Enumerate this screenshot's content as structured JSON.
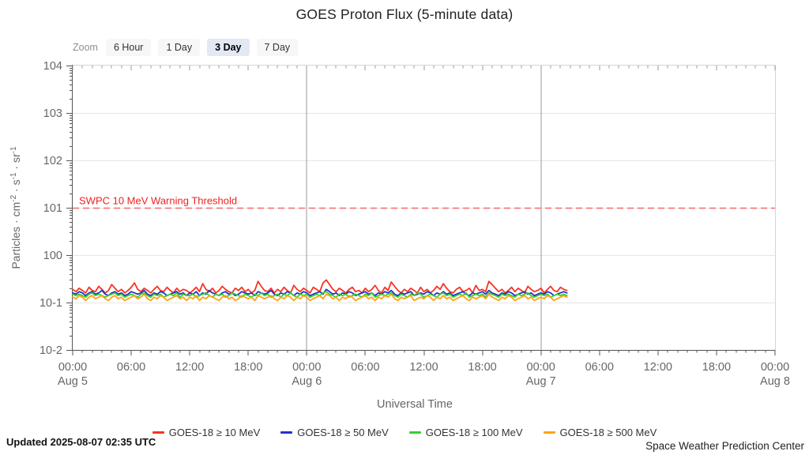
{
  "title": "GOES Proton Flux (5-minute data)",
  "toolbar": {
    "label": "Zoom",
    "buttons": [
      {
        "label": "6 Hour",
        "selected": false
      },
      {
        "label": "1 Day",
        "selected": false
      },
      {
        "label": "3 Day",
        "selected": true
      },
      {
        "label": "7 Day",
        "selected": false
      }
    ]
  },
  "footer": {
    "updated": "Updated 2025-08-07 02:35 UTC",
    "source": "Space Weather Prediction Center"
  },
  "colors": {
    "axis": "#555555",
    "frame": "#ccd6eb",
    "grid": "#e6e6e6",
    "day_separator": "#999999",
    "tick_label": "#666666",
    "threshold_line": "#f26a6a",
    "threshold_text": "#ee2222",
    "selected_button_bg": "#e3e8f5"
  },
  "chart_data": {
    "type": "line",
    "title": "GOES Proton Flux (5-minute data)",
    "xlabel": "Universal Time",
    "ylabel": "Particles · cm⁻² · s⁻¹ · sr⁻¹",
    "ylabel_parts": [
      [
        "t",
        "Particles · cm"
      ],
      [
        "s",
        "-2"
      ],
      [
        "t",
        " · s"
      ],
      [
        "s",
        "-1"
      ],
      [
        "t",
        " · sr"
      ],
      [
        "s",
        "-1"
      ]
    ],
    "y_scale": "log",
    "ylim": [
      0.01,
      10000
    ],
    "y_tick_labels": [
      "104",
      "103",
      "102",
      "101",
      "100",
      "10-1",
      "10-2"
    ],
    "x_range_hours": 72,
    "x_major_ticks": [
      {
        "time": "00:00",
        "date": "Aug 5"
      },
      {
        "time": "06:00"
      },
      {
        "time": "12:00"
      },
      {
        "time": "18:00"
      },
      {
        "time": "00:00",
        "date": "Aug 6"
      },
      {
        "time": "06:00"
      },
      {
        "time": "12:00"
      },
      {
        "time": "18:00"
      },
      {
        "time": "00:00",
        "date": "Aug 7"
      },
      {
        "time": "06:00"
      },
      {
        "time": "12:00"
      },
      {
        "time": "18:00"
      },
      {
        "time": "00:00",
        "date": "Aug 8"
      }
    ],
    "day_separators_hours": [
      24,
      48
    ],
    "threshold": {
      "label": "SWPC 10 MeV Warning Threshold",
      "value": 10
    },
    "legend_position": "bottom",
    "grid": "horizontal-decades",
    "sample_step_minutes": 20,
    "series": [
      {
        "name": "GOES-18 ≥ 10 MeV",
        "color": "#f8341f",
        "values": [
          0.19,
          0.17,
          0.2,
          0.18,
          0.16,
          0.21,
          0.18,
          0.17,
          0.22,
          0.19,
          0.16,
          0.18,
          0.24,
          0.2,
          0.17,
          0.19,
          0.16,
          0.18,
          0.21,
          0.26,
          0.19,
          0.17,
          0.2,
          0.18,
          0.16,
          0.19,
          0.22,
          0.18,
          0.17,
          0.21,
          0.18,
          0.16,
          0.2,
          0.17,
          0.19,
          0.18,
          0.16,
          0.18,
          0.21,
          0.17,
          0.25,
          0.19,
          0.17,
          0.2,
          0.16,
          0.18,
          0.22,
          0.19,
          0.17,
          0.16,
          0.2,
          0.18,
          0.21,
          0.17,
          0.19,
          0.16,
          0.18,
          0.28,
          0.22,
          0.18,
          0.17,
          0.2,
          0.16,
          0.19,
          0.17,
          0.21,
          0.18,
          0.16,
          0.23,
          0.19,
          0.17,
          0.2,
          0.18,
          0.16,
          0.21,
          0.19,
          0.17,
          0.26,
          0.3,
          0.24,
          0.19,
          0.17,
          0.2,
          0.18,
          0.16,
          0.19,
          0.21,
          0.17,
          0.18,
          0.16,
          0.2,
          0.17,
          0.19,
          0.23,
          0.18,
          0.16,
          0.21,
          0.18,
          0.27,
          0.22,
          0.18,
          0.16,
          0.19,
          0.17,
          0.2,
          0.18,
          0.16,
          0.21,
          0.17,
          0.19,
          0.16,
          0.18,
          0.22,
          0.19,
          0.25,
          0.2,
          0.17,
          0.16,
          0.19,
          0.21,
          0.17,
          0.18,
          0.2,
          0.16,
          0.23,
          0.18,
          0.19,
          0.17,
          0.28,
          0.24,
          0.2,
          0.17,
          0.19,
          0.16,
          0.18,
          0.21,
          0.17,
          0.2,
          0.18,
          0.16,
          0.22,
          0.19,
          0.17,
          0.18,
          0.2,
          0.16,
          0.19,
          0.22,
          0.18,
          0.17,
          0.21,
          0.19,
          0.18
        ]
      },
      {
        "name": "GOES-18 ≥ 50 MeV",
        "color": "#2330cf",
        "values": [
          0.16,
          0.15,
          0.17,
          0.16,
          0.14,
          0.16,
          0.17,
          0.15,
          0.16,
          0.18,
          0.15,
          0.14,
          0.16,
          0.17,
          0.15,
          0.16,
          0.14,
          0.15,
          0.17,
          0.16,
          0.15,
          0.16,
          0.18,
          0.15,
          0.14,
          0.16,
          0.15,
          0.17,
          0.16,
          0.14,
          0.15,
          0.16,
          0.17,
          0.15,
          0.16,
          0.14,
          0.16,
          0.15,
          0.17,
          0.14,
          0.16,
          0.15,
          0.18,
          0.16,
          0.15,
          0.14,
          0.16,
          0.17,
          0.15,
          0.16,
          0.14,
          0.15,
          0.17,
          0.16,
          0.15,
          0.16,
          0.14,
          0.17,
          0.16,
          0.15,
          0.16,
          0.18,
          0.15,
          0.14,
          0.16,
          0.15,
          0.17,
          0.16,
          0.14,
          0.16,
          0.15,
          0.17,
          0.16,
          0.14,
          0.15,
          0.16,
          0.17,
          0.15,
          0.19,
          0.17,
          0.15,
          0.16,
          0.14,
          0.16,
          0.15,
          0.17,
          0.16,
          0.14,
          0.15,
          0.16,
          0.17,
          0.15,
          0.16,
          0.14,
          0.16,
          0.15,
          0.17,
          0.16,
          0.18,
          0.15,
          0.14,
          0.16,
          0.15,
          0.16,
          0.17,
          0.14,
          0.15,
          0.16,
          0.15,
          0.17,
          0.16,
          0.14,
          0.16,
          0.15,
          0.17,
          0.15,
          0.16,
          0.14,
          0.15,
          0.16,
          0.17,
          0.15,
          0.14,
          0.16,
          0.15,
          0.16,
          0.17,
          0.15,
          0.18,
          0.16,
          0.15,
          0.14,
          0.16,
          0.15,
          0.17,
          0.16,
          0.14,
          0.15,
          0.16,
          0.17,
          0.15,
          0.16,
          0.14,
          0.15,
          0.16,
          0.15,
          0.17,
          0.16,
          0.14,
          0.15,
          0.16,
          0.17,
          0.16
        ]
      },
      {
        "name": "GOES-18 ≥ 100 MeV",
        "color": "#35d12f",
        "values": [
          0.15,
          0.14,
          0.15,
          0.14,
          0.13,
          0.15,
          0.16,
          0.14,
          0.15,
          0.14,
          0.13,
          0.14,
          0.15,
          0.16,
          0.14,
          0.15,
          0.13,
          0.14,
          0.15,
          0.14,
          0.13,
          0.15,
          0.16,
          0.14,
          0.13,
          0.15,
          0.14,
          0.15,
          0.13,
          0.14,
          0.15,
          0.14,
          0.16,
          0.13,
          0.15,
          0.14,
          0.14,
          0.15,
          0.13,
          0.14,
          0.15,
          0.16,
          0.14,
          0.13,
          0.15,
          0.14,
          0.15,
          0.13,
          0.14,
          0.16,
          0.15,
          0.14,
          0.13,
          0.15,
          0.14,
          0.13,
          0.15,
          0.14,
          0.16,
          0.14,
          0.15,
          0.13,
          0.14,
          0.15,
          0.13,
          0.15,
          0.14,
          0.16,
          0.14,
          0.13,
          0.15,
          0.14,
          0.15,
          0.13,
          0.14,
          0.15,
          0.14,
          0.16,
          0.17,
          0.15,
          0.14,
          0.13,
          0.15,
          0.14,
          0.15,
          0.13,
          0.14,
          0.15,
          0.14,
          0.13,
          0.15,
          0.14,
          0.16,
          0.13,
          0.14,
          0.15,
          0.14,
          0.15,
          0.16,
          0.14,
          0.13,
          0.15,
          0.14,
          0.13,
          0.15,
          0.14,
          0.16,
          0.15,
          0.13,
          0.14,
          0.15,
          0.14,
          0.13,
          0.15,
          0.16,
          0.14,
          0.15,
          0.13,
          0.14,
          0.15,
          0.14,
          0.16,
          0.13,
          0.14,
          0.15,
          0.14,
          0.15,
          0.13,
          0.16,
          0.15,
          0.14,
          0.13,
          0.15,
          0.14,
          0.15,
          0.14,
          0.13,
          0.15,
          0.14,
          0.15,
          0.16,
          0.14,
          0.13,
          0.14,
          0.15,
          0.14,
          0.15,
          0.13,
          0.14,
          0.15,
          0.14,
          0.15,
          0.14
        ]
      },
      {
        "name": "GOES-18 ≥ 500 MeV",
        "color": "#ffa216",
        "values": [
          0.13,
          0.12,
          0.14,
          0.13,
          0.11,
          0.13,
          0.14,
          0.12,
          0.13,
          0.14,
          0.12,
          0.11,
          0.13,
          0.14,
          0.12,
          0.13,
          0.11,
          0.12,
          0.13,
          0.14,
          0.12,
          0.13,
          0.15,
          0.12,
          0.11,
          0.13,
          0.12,
          0.14,
          0.13,
          0.11,
          0.12,
          0.13,
          0.14,
          0.12,
          0.13,
          0.11,
          0.13,
          0.12,
          0.14,
          0.11,
          0.13,
          0.12,
          0.14,
          0.13,
          0.12,
          0.11,
          0.13,
          0.14,
          0.12,
          0.13,
          0.11,
          0.12,
          0.14,
          0.13,
          0.12,
          0.13,
          0.11,
          0.14,
          0.13,
          0.12,
          0.13,
          0.14,
          0.12,
          0.11,
          0.13,
          0.12,
          0.14,
          0.13,
          0.11,
          0.13,
          0.12,
          0.14,
          0.13,
          0.11,
          0.12,
          0.13,
          0.14,
          0.12,
          0.15,
          0.14,
          0.12,
          0.13,
          0.11,
          0.13,
          0.12,
          0.14,
          0.13,
          0.11,
          0.12,
          0.13,
          0.14,
          0.12,
          0.13,
          0.11,
          0.13,
          0.12,
          0.14,
          0.13,
          0.15,
          0.12,
          0.11,
          0.13,
          0.12,
          0.13,
          0.14,
          0.11,
          0.12,
          0.13,
          0.12,
          0.14,
          0.13,
          0.11,
          0.13,
          0.12,
          0.14,
          0.12,
          0.13,
          0.11,
          0.12,
          0.13,
          0.14,
          0.12,
          0.11,
          0.13,
          0.12,
          0.13,
          0.14,
          0.12,
          0.15,
          0.13,
          0.12,
          0.11,
          0.13,
          0.12,
          0.14,
          0.13,
          0.11,
          0.12,
          0.13,
          0.14,
          0.12,
          0.13,
          0.11,
          0.12,
          0.13,
          0.12,
          0.14,
          0.13,
          0.11,
          0.12,
          0.13,
          0.14,
          0.13
        ]
      }
    ]
  }
}
